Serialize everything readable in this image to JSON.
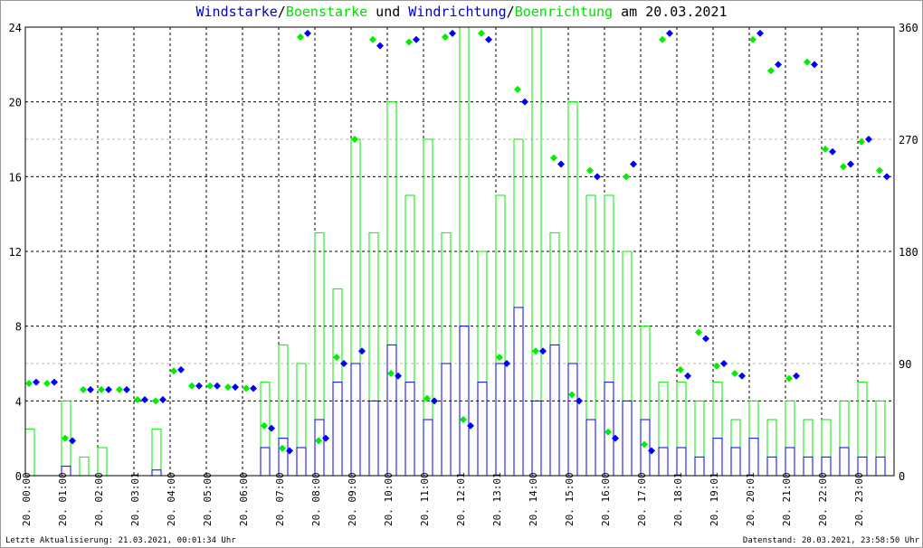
{
  "title": {
    "part1": "Windstarke",
    "sep1": "/",
    "part2": "Boenstarke",
    "part3": " und ",
    "part4": "Windrichtung",
    "sep2": "/",
    "part5": "Boenrichtung",
    "part6": " am 20.03.2021"
  },
  "footer": {
    "left": "Letzte Aktualisierung: 21.03.2021, 00:01:34 Uhr",
    "right": "Datenstand: 20.03.2021, 23:58:50 Uhr"
  },
  "colors": {
    "speed": "#0000ff",
    "gust": "#00ee00",
    "grid": "#000000"
  },
  "chart_data": {
    "type": "line",
    "title": "Windstarke/Boenstarke und Windrichtung/Boenrichtung am 20.03.2021",
    "y_left": {
      "ticks": [
        "0",
        "4",
        "8",
        "12",
        "16",
        "20",
        "24"
      ],
      "range": [
        0,
        24
      ]
    },
    "y_right": {
      "ticks": [
        "0",
        "90",
        "180",
        "270",
        "360"
      ],
      "range": [
        0,
        360
      ]
    },
    "x_ticks": [
      "20. 00:00",
      "20. 01:00",
      "20. 02:00",
      "20. 03:01",
      "20. 04:00",
      "20. 05:00",
      "20. 06:00",
      "20. 07:00",
      "20. 08:00",
      "20. 09:00",
      "20. 10:00",
      "20. 11:00",
      "20. 12:01",
      "20. 13:01",
      "20. 14:00",
      "20. 15:00",
      "20. 16:00",
      "20. 17:00",
      "20. 18:01",
      "20. 19:01",
      "20. 20:01",
      "20. 21:00",
      "20. 22:00",
      "20. 23:00"
    ],
    "x_hours_step": 0.5,
    "series": [
      {
        "name": "Windstarke",
        "axis": "left",
        "kind": "line",
        "values": [
          0,
          0,
          0.5,
          0,
          0,
          0,
          0,
          0.3,
          0,
          0,
          0,
          0,
          0,
          1.5,
          2,
          1.5,
          3,
          5,
          6,
          4,
          7,
          5,
          3,
          6,
          8,
          5,
          6,
          9,
          4,
          7,
          6,
          3,
          5,
          4,
          3,
          1.5,
          1.5,
          1,
          2,
          1.5,
          2,
          1,
          1.5,
          1,
          1,
          1.5,
          1,
          1
        ]
      },
      {
        "name": "Boenstarke",
        "axis": "left",
        "kind": "line",
        "values": [
          2.5,
          0,
          4,
          1,
          1.5,
          0,
          0,
          2.5,
          0,
          0,
          0,
          0,
          0,
          5,
          7,
          6,
          13,
          10,
          18,
          13,
          20,
          15,
          18,
          13,
          24,
          12,
          15,
          18,
          24,
          13,
          20,
          15,
          15,
          12,
          8,
          5,
          5,
          4,
          5,
          3,
          4,
          3,
          4,
          3,
          3,
          4,
          5,
          4
        ]
      },
      {
        "name": "Windrichtung",
        "axis": "right",
        "kind": "points",
        "values": [
          75,
          75,
          28,
          69,
          69,
          69,
          61,
          61,
          85,
          72,
          72,
          71,
          70,
          38,
          20,
          355,
          30,
          90,
          100,
          345,
          80,
          350,
          60,
          355,
          40,
          350,
          90,
          300,
          100,
          250,
          60,
          240,
          30,
          250,
          20,
          355,
          80,
          110,
          90,
          80,
          355,
          330,
          80,
          330,
          260,
          250,
          270,
          240
        ]
      },
      {
        "name": "Boenrichtung",
        "axis": "right",
        "kind": "points",
        "values": [
          74,
          74,
          30,
          69,
          69,
          69,
          61,
          60,
          84,
          72,
          72,
          71,
          70,
          40,
          22,
          352,
          28,
          95,
          270,
          350,
          82,
          348,
          62,
          352,
          45,
          355,
          95,
          310,
          100,
          255,
          65,
          245,
          35,
          240,
          25,
          350,
          85,
          115,
          88,
          82,
          350,
          325,
          78,
          332,
          262,
          248,
          268,
          245
        ]
      }
    ]
  }
}
